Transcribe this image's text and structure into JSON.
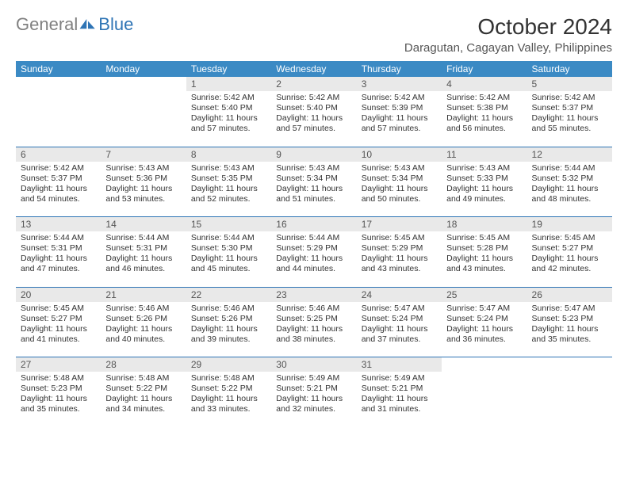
{
  "brand": {
    "part1": "General",
    "part2": "Blue"
  },
  "title": "October 2024",
  "location": "Daragutan, Cagayan Valley, Philippines",
  "colors": {
    "header_bg": "#3b8ac4",
    "header_text": "#ffffff",
    "daynum_bg": "#e9e9e9",
    "rule": "#2e74b5",
    "brand_gray": "#808080",
    "brand_blue": "#2e74b5"
  },
  "day_names": [
    "Sunday",
    "Monday",
    "Tuesday",
    "Wednesday",
    "Thursday",
    "Friday",
    "Saturday"
  ],
  "weeks": [
    [
      {
        "n": "",
        "sr": "",
        "ss": "",
        "dl": ""
      },
      {
        "n": "",
        "sr": "",
        "ss": "",
        "dl": ""
      },
      {
        "n": "1",
        "sr": "5:42 AM",
        "ss": "5:40 PM",
        "dl": "11 hours and 57 minutes."
      },
      {
        "n": "2",
        "sr": "5:42 AM",
        "ss": "5:40 PM",
        "dl": "11 hours and 57 minutes."
      },
      {
        "n": "3",
        "sr": "5:42 AM",
        "ss": "5:39 PM",
        "dl": "11 hours and 57 minutes."
      },
      {
        "n": "4",
        "sr": "5:42 AM",
        "ss": "5:38 PM",
        "dl": "11 hours and 56 minutes."
      },
      {
        "n": "5",
        "sr": "5:42 AM",
        "ss": "5:37 PM",
        "dl": "11 hours and 55 minutes."
      }
    ],
    [
      {
        "n": "6",
        "sr": "5:42 AM",
        "ss": "5:37 PM",
        "dl": "11 hours and 54 minutes."
      },
      {
        "n": "7",
        "sr": "5:43 AM",
        "ss": "5:36 PM",
        "dl": "11 hours and 53 minutes."
      },
      {
        "n": "8",
        "sr": "5:43 AM",
        "ss": "5:35 PM",
        "dl": "11 hours and 52 minutes."
      },
      {
        "n": "9",
        "sr": "5:43 AM",
        "ss": "5:34 PM",
        "dl": "11 hours and 51 minutes."
      },
      {
        "n": "10",
        "sr": "5:43 AM",
        "ss": "5:34 PM",
        "dl": "11 hours and 50 minutes."
      },
      {
        "n": "11",
        "sr": "5:43 AM",
        "ss": "5:33 PM",
        "dl": "11 hours and 49 minutes."
      },
      {
        "n": "12",
        "sr": "5:44 AM",
        "ss": "5:32 PM",
        "dl": "11 hours and 48 minutes."
      }
    ],
    [
      {
        "n": "13",
        "sr": "5:44 AM",
        "ss": "5:31 PM",
        "dl": "11 hours and 47 minutes."
      },
      {
        "n": "14",
        "sr": "5:44 AM",
        "ss": "5:31 PM",
        "dl": "11 hours and 46 minutes."
      },
      {
        "n": "15",
        "sr": "5:44 AM",
        "ss": "5:30 PM",
        "dl": "11 hours and 45 minutes."
      },
      {
        "n": "16",
        "sr": "5:44 AM",
        "ss": "5:29 PM",
        "dl": "11 hours and 44 minutes."
      },
      {
        "n": "17",
        "sr": "5:45 AM",
        "ss": "5:29 PM",
        "dl": "11 hours and 43 minutes."
      },
      {
        "n": "18",
        "sr": "5:45 AM",
        "ss": "5:28 PM",
        "dl": "11 hours and 43 minutes."
      },
      {
        "n": "19",
        "sr": "5:45 AM",
        "ss": "5:27 PM",
        "dl": "11 hours and 42 minutes."
      }
    ],
    [
      {
        "n": "20",
        "sr": "5:45 AM",
        "ss": "5:27 PM",
        "dl": "11 hours and 41 minutes."
      },
      {
        "n": "21",
        "sr": "5:46 AM",
        "ss": "5:26 PM",
        "dl": "11 hours and 40 minutes."
      },
      {
        "n": "22",
        "sr": "5:46 AM",
        "ss": "5:26 PM",
        "dl": "11 hours and 39 minutes."
      },
      {
        "n": "23",
        "sr": "5:46 AM",
        "ss": "5:25 PM",
        "dl": "11 hours and 38 minutes."
      },
      {
        "n": "24",
        "sr": "5:47 AM",
        "ss": "5:24 PM",
        "dl": "11 hours and 37 minutes."
      },
      {
        "n": "25",
        "sr": "5:47 AM",
        "ss": "5:24 PM",
        "dl": "11 hours and 36 minutes."
      },
      {
        "n": "26",
        "sr": "5:47 AM",
        "ss": "5:23 PM",
        "dl": "11 hours and 35 minutes."
      }
    ],
    [
      {
        "n": "27",
        "sr": "5:48 AM",
        "ss": "5:23 PM",
        "dl": "11 hours and 35 minutes."
      },
      {
        "n": "28",
        "sr": "5:48 AM",
        "ss": "5:22 PM",
        "dl": "11 hours and 34 minutes."
      },
      {
        "n": "29",
        "sr": "5:48 AM",
        "ss": "5:22 PM",
        "dl": "11 hours and 33 minutes."
      },
      {
        "n": "30",
        "sr": "5:49 AM",
        "ss": "5:21 PM",
        "dl": "11 hours and 32 minutes."
      },
      {
        "n": "31",
        "sr": "5:49 AM",
        "ss": "5:21 PM",
        "dl": "11 hours and 31 minutes."
      },
      {
        "n": "",
        "sr": "",
        "ss": "",
        "dl": ""
      },
      {
        "n": "",
        "sr": "",
        "ss": "",
        "dl": ""
      }
    ]
  ],
  "labels": {
    "sunrise": "Sunrise:",
    "sunset": "Sunset:",
    "daylight": "Daylight:"
  }
}
